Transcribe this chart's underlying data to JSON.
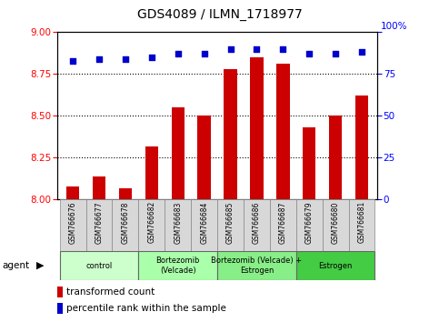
{
  "title": "GDS4089 / ILMN_1718977",
  "samples": [
    "GSM766676",
    "GSM766677",
    "GSM766678",
    "GSM766682",
    "GSM766683",
    "GSM766684",
    "GSM766685",
    "GSM766686",
    "GSM766687",
    "GSM766679",
    "GSM766680",
    "GSM766681"
  ],
  "bar_values": [
    8.08,
    8.14,
    8.07,
    8.32,
    8.55,
    8.5,
    8.78,
    8.85,
    8.81,
    8.43,
    8.5,
    8.62
  ],
  "dot_values": [
    83,
    84,
    84,
    85,
    87,
    87,
    90,
    90,
    90,
    87,
    87,
    88
  ],
  "bar_color": "#cc0000",
  "dot_color": "#0000cc",
  "ylim_left": [
    8.0,
    9.0
  ],
  "ylim_right": [
    0,
    100
  ],
  "yticks_left": [
    8.0,
    8.25,
    8.5,
    8.75,
    9.0
  ],
  "yticks_right": [
    0,
    25,
    50,
    75,
    100
  ],
  "grid_values": [
    8.25,
    8.5,
    8.75
  ],
  "groups": [
    {
      "label": "control",
      "start": 0,
      "end": 3,
      "color": "#ccffcc"
    },
    {
      "label": "Bortezomib\n(Velcade)",
      "start": 3,
      "end": 6,
      "color": "#aaffaa"
    },
    {
      "label": "Bortezomib (Velcade) +\nEstrogen",
      "start": 6,
      "end": 9,
      "color": "#88ee88"
    },
    {
      "label": "Estrogen",
      "start": 9,
      "end": 12,
      "color": "#44cc44"
    }
  ],
  "agent_label": "agent",
  "legend_bar_label": "transformed count",
  "legend_dot_label": "percentile rank within the sample",
  "bar_width": 0.5
}
